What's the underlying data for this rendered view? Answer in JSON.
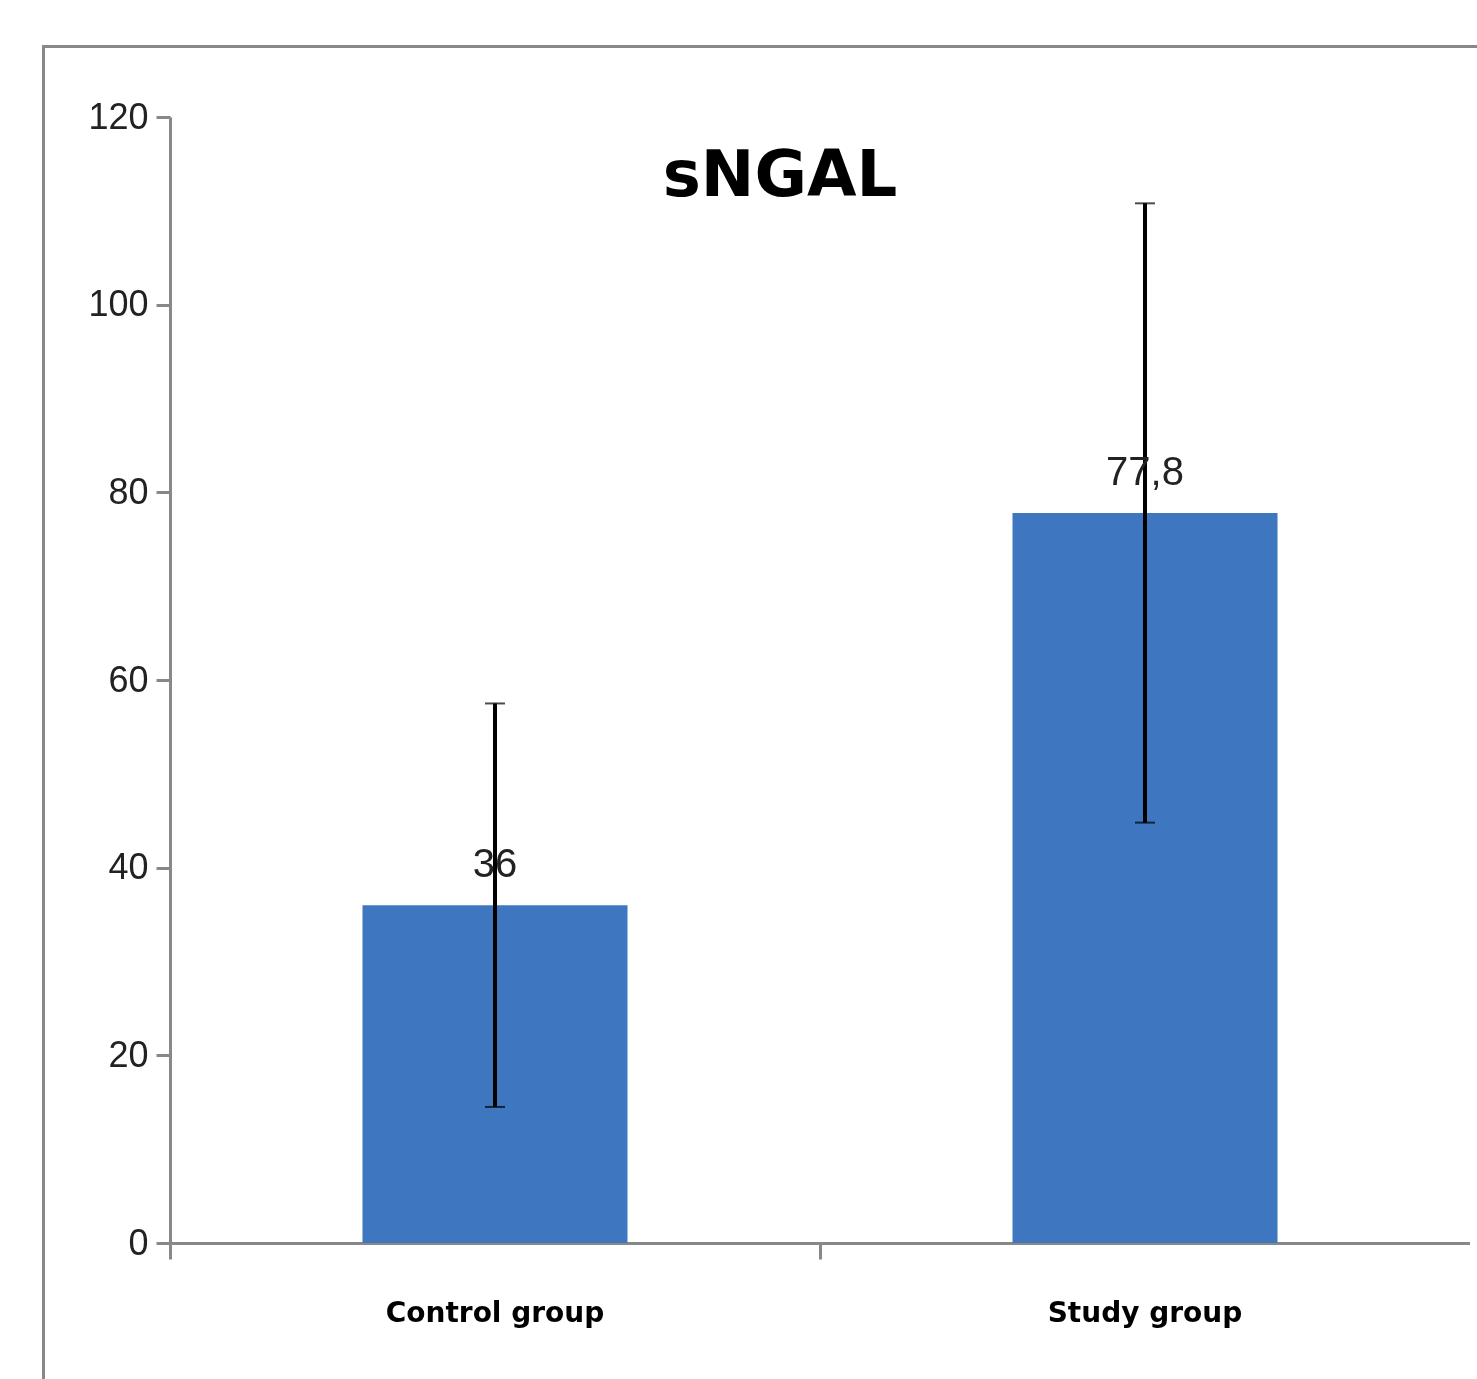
{
  "chart_data": {
    "type": "bar",
    "title": "sNGAL",
    "categories": [
      "Control group",
      "Study group"
    ],
    "values": [
      36,
      77.8
    ],
    "errors": [
      21.5,
      33
    ],
    "value_labels": [
      "36",
      "77,8"
    ],
    "color": "#3e76c0",
    "ylim": [
      0,
      120
    ],
    "yticks": [
      0,
      20,
      40,
      60,
      80,
      100,
      120
    ],
    "grid": false
  }
}
